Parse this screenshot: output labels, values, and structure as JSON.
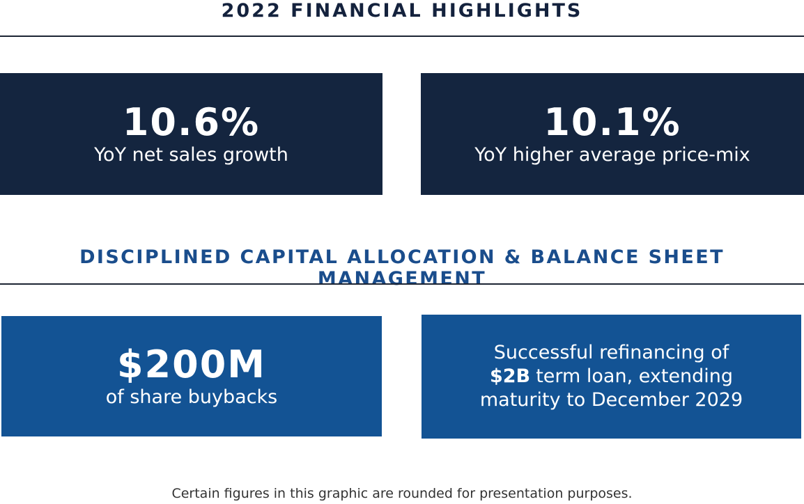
{
  "sections": [
    {
      "title": "2022 FINANCIAL HIGHLIGHTS",
      "cards": [
        {
          "value": "10.6%",
          "label": "YoY net sales growth"
        },
        {
          "value": "10.1%",
          "label": "YoY higher average price-mix"
        }
      ]
    },
    {
      "title": "DISCIPLINED CAPITAL ALLOCATION & BALANCE SHEET MANAGEMENT",
      "cards": [
        {
          "value": "$200M",
          "label": "of share buybacks"
        },
        {
          "line1": "Successful refinancing of",
          "emphasis": "$2B",
          "line2": "term loan, extending",
          "line3": "maturity to December 2029"
        }
      ]
    }
  ],
  "footnote": "Certain figures in this graphic are rounded for presentation purposes."
}
